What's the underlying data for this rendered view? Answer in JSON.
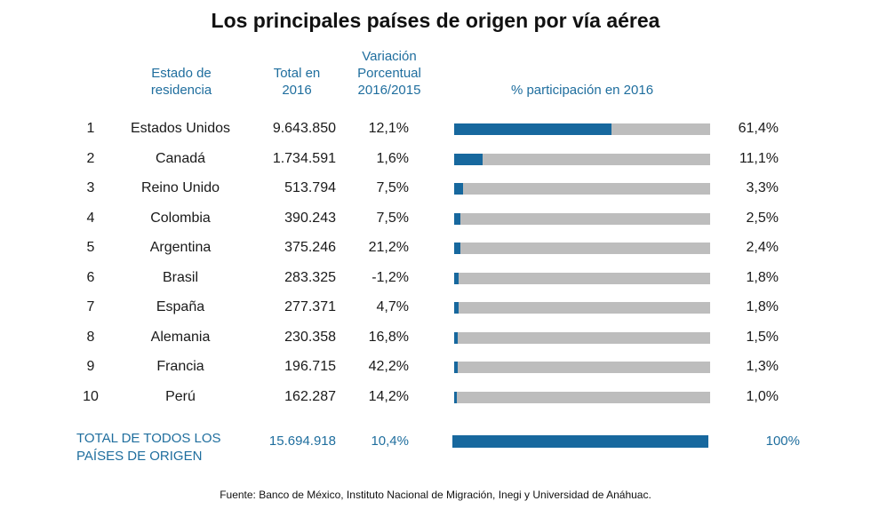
{
  "chart_data": {
    "type": "table",
    "title": "Los principales países de origen  por vía aérea",
    "headers": {
      "rank": "",
      "country": "Estado de residencia",
      "total": "Total en 2016",
      "variation": "Variación Porcentual 2016/2015",
      "share": "% participación en 2016"
    },
    "rows": [
      {
        "rank": "1",
        "country": "Estados Unidos",
        "total": "9.643.850",
        "variation": "12,1%",
        "share_value": 61.4,
        "share_label": "61,4%"
      },
      {
        "rank": "2",
        "country": "Canadá",
        "total": "1.734.591",
        "variation": "1,6%",
        "share_value": 11.1,
        "share_label": "11,1%"
      },
      {
        "rank": "3",
        "country": "Reino Unido",
        "total": "513.794",
        "variation": "7,5%",
        "share_value": 3.3,
        "share_label": "3,3%"
      },
      {
        "rank": "4",
        "country": "Colombia",
        "total": "390.243",
        "variation": "7,5%",
        "share_value": 2.5,
        "share_label": "2,5%"
      },
      {
        "rank": "5",
        "country": "Argentina",
        "total": "375.246",
        "variation": "21,2%",
        "share_value": 2.4,
        "share_label": "2,4%"
      },
      {
        "rank": "6",
        "country": "Brasil",
        "total": "283.325",
        "variation": "-1,2%",
        "share_value": 1.8,
        "share_label": "1,8%"
      },
      {
        "rank": "7",
        "country": "España",
        "total": "277.371",
        "variation": "4,7%",
        "share_value": 1.8,
        "share_label": "1,8%"
      },
      {
        "rank": "8",
        "country": "Alemania",
        "total": "230.358",
        "variation": "16,8%",
        "share_value": 1.5,
        "share_label": "1,5%"
      },
      {
        "rank": "9",
        "country": "Francia",
        "total": "196.715",
        "variation": "42,2%",
        "share_value": 1.3,
        "share_label": "1,3%"
      },
      {
        "rank": "10",
        "country": "Perú",
        "total": "162.287",
        "variation": "14,2%",
        "share_value": 1.0,
        "share_label": "1,0%"
      }
    ],
    "total_row": {
      "label": "TOTAL DE TODOS LOS PAÍSES DE ORIGEN",
      "total": "15.694.918",
      "variation": "10,4%",
      "share_value": 100,
      "share_label": "100%"
    },
    "source": "Fuente: Banco de México, Instituto Nacional de Migración, Inegi y Universidad de Anáhuac.",
    "colors": {
      "bar": "#17689e",
      "track": "#bdbdbd",
      "header": "#1f6e9e"
    }
  }
}
